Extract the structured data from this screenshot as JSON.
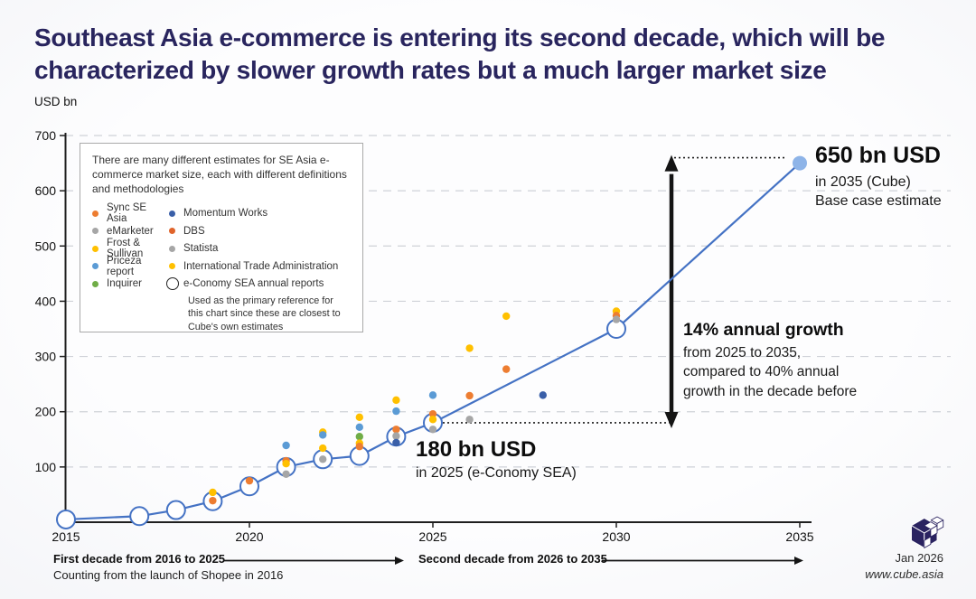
{
  "header": {
    "title": "Southeast Asia e-commerce is entering its second decade, which will be characterized by slower growth rates but a much larger market size",
    "y_axis_unit": "USD bn"
  },
  "legend": {
    "intro": "There are many different estimates for SE Asia e-commerce market size, each with different definitions and methodologies",
    "col1": [
      {
        "label": "Sync SE Asia",
        "color": "#ED7D31"
      },
      {
        "label": "eMarketer",
        "color": "#A6A6A6"
      },
      {
        "label": "Frost & Sullivan",
        "color": "#FFC000"
      },
      {
        "label": "Priceza report",
        "color": "#5B9BD5"
      },
      {
        "label": "Inquirer",
        "color": "#70AD47"
      }
    ],
    "col2": [
      {
        "label": "Momentum Works",
        "color": "#3A5FA8"
      },
      {
        "label": "DBS",
        "color": "#E0642B"
      },
      {
        "label": "Statista",
        "color": "#A6A6A6"
      },
      {
        "label": "International Trade Administration",
        "color": "#FFC000"
      }
    ],
    "econ": {
      "label": "e-Conomy SEA annual reports",
      "note": "Used as the primary reference for this chart since these are closest to Cube's own estimates"
    }
  },
  "annotations": {
    "end": {
      "headline": "650 bn USD",
      "line1": "in 2035 (Cube)",
      "line2": "Base case estimate"
    },
    "growth": {
      "headline": "14% annual growth",
      "line1": "from 2025 to 2035,",
      "line2": "compared to 40% annual",
      "line3": "growth in the decade before"
    },
    "mid": {
      "headline": "180 bn USD",
      "line1": "in 2025 (e-Conomy SEA)"
    }
  },
  "footer": {
    "first_decade": "First decade from 2016 to 2025",
    "first_decade_sub": "Counting from the launch of Shopee in 2016",
    "second_decade": "Second decade from 2026 to 2035",
    "date": "Jan 2026",
    "site": "www.cube.asia"
  },
  "chart_data": {
    "type": "line+scatter",
    "title": "SE Asia e-commerce market size estimates",
    "ylabel": "USD bn",
    "ylim": [
      0,
      700
    ],
    "xlim": [
      2015,
      2035
    ],
    "grid": "dashed horizontal",
    "y_ticks": [
      100,
      200,
      300,
      400,
      500,
      600,
      700
    ],
    "x_ticks": [
      2015,
      2020,
      2025,
      2030,
      2035
    ],
    "palette": {
      "orange": "#ED7D31",
      "yellow": "#FFC000",
      "lightblue": "#5B9BD5",
      "gray": "#A6A6A6",
      "green": "#70AD47",
      "darkblue": "#3A5FA8",
      "line": "#4472C4",
      "end_fill": "#8EB4E8",
      "marker_fill": "#FFFFFF"
    },
    "main_series": {
      "name": "e-Conomy SEA annual reports (2030/2035 = Cube base case estimate)",
      "points": [
        [
          2015,
          5
        ],
        [
          2017,
          11
        ],
        [
          2018,
          22
        ],
        [
          2019,
          38
        ],
        [
          2020,
          65
        ],
        [
          2021,
          100
        ],
        [
          2022,
          114
        ],
        [
          2023,
          120
        ],
        [
          2024,
          155
        ],
        [
          2025,
          180
        ],
        [
          2030,
          350
        ],
        [
          2035,
          650
        ]
      ]
    },
    "scatter": [
      {
        "year": 2019,
        "value": 54,
        "color": "yellow"
      },
      {
        "year": 2019,
        "value": 39,
        "color": "orange"
      },
      {
        "year": 2020,
        "value": 75,
        "color": "orange"
      },
      {
        "year": 2021,
        "value": 139,
        "color": "lightblue"
      },
      {
        "year": 2021,
        "value": 111,
        "color": "orange"
      },
      {
        "year": 2021,
        "value": 106,
        "color": "yellow"
      },
      {
        "year": 2021,
        "value": 87,
        "color": "gray"
      },
      {
        "year": 2022,
        "value": 163,
        "color": "yellow"
      },
      {
        "year": 2022,
        "value": 158,
        "color": "lightblue"
      },
      {
        "year": 2022,
        "value": 134,
        "color": "yellow"
      },
      {
        "year": 2022,
        "value": 114,
        "color": "gray"
      },
      {
        "year": 2023,
        "value": 190,
        "color": "yellow"
      },
      {
        "year": 2023,
        "value": 172,
        "color": "lightblue"
      },
      {
        "year": 2023,
        "value": 155,
        "color": "green"
      },
      {
        "year": 2023,
        "value": 143,
        "color": "yellow"
      },
      {
        "year": 2023,
        "value": 137,
        "color": "orange"
      },
      {
        "year": 2024,
        "value": 221,
        "color": "yellow"
      },
      {
        "year": 2024,
        "value": 201,
        "color": "lightblue"
      },
      {
        "year": 2024,
        "value": 168,
        "color": "orange"
      },
      {
        "year": 2024,
        "value": 156,
        "color": "gray"
      },
      {
        "year": 2024,
        "value": 144,
        "color": "darkblue"
      },
      {
        "year": 2025,
        "value": 230,
        "color": "lightblue"
      },
      {
        "year": 2025,
        "value": 196,
        "color": "orange"
      },
      {
        "year": 2025,
        "value": 186,
        "color": "yellow"
      },
      {
        "year": 2025,
        "value": 168,
        "color": "gray"
      },
      {
        "year": 2026,
        "value": 315,
        "color": "yellow"
      },
      {
        "year": 2026,
        "value": 229,
        "color": "orange"
      },
      {
        "year": 2026,
        "value": 186,
        "color": "gray"
      },
      {
        "year": 2027,
        "value": 373,
        "color": "yellow"
      },
      {
        "year": 2027,
        "value": 277,
        "color": "orange"
      },
      {
        "year": 2028,
        "value": 230,
        "color": "darkblue"
      },
      {
        "year": 2030,
        "value": 382,
        "color": "yellow"
      },
      {
        "year": 2030,
        "value": 374,
        "color": "orange"
      },
      {
        "year": 2030,
        "value": 367,
        "color": "gray"
      }
    ],
    "callouts": [
      {
        "at": [
          2035,
          650
        ],
        "text": "650 bn USD in 2035 (Cube), base case estimate"
      },
      {
        "at": [
          2025,
          180
        ],
        "text": "180 bn USD in 2025 (e-Conomy SEA)"
      },
      {
        "text": "14% annual growth from 2025 to 2035, compared to 40% annual growth in the decade before"
      }
    ]
  }
}
